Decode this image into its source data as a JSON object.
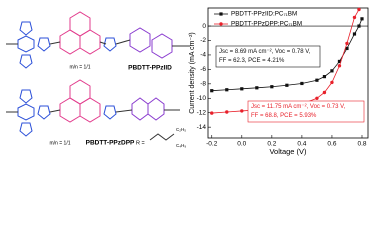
{
  "structures": {
    "polymer1": "PBDTT-PPzIID",
    "polymer2": "PBDTT-PPzDPP",
    "ratio1": "m/n = 1/1",
    "ratio2": "m/n = 1/1",
    "r_label": "R =",
    "substituent1": "C₂H₅",
    "substituent2": "C₄H₉"
  },
  "chart_data": {
    "type": "line",
    "xlabel": "Voltage (V)",
    "ylabel": "Current density (mA cm⁻²)",
    "x": [
      -0.2,
      -0.1,
      0,
      0.1,
      0.2,
      0.3,
      0.4,
      0.5,
      0.55,
      0.6,
      0.65,
      0.7,
      0.75,
      0.78,
      0.8
    ],
    "series": [
      {
        "name": "PBDTT-PPzIID:PC₇₁BM",
        "color": "#111111",
        "marker": "square",
        "values": [
          -8.95,
          -8.82,
          -8.69,
          -8.55,
          -8.4,
          -8.2,
          -7.95,
          -7.5,
          -7.0,
          -6.2,
          -4.9,
          -3.1,
          -1.1,
          0,
          1.0
        ]
      },
      {
        "name": "PBDTT-PPzDPP:PC₇₁BM",
        "color": "#e8202a",
        "marker": "circle",
        "values": [
          -12.05,
          -11.9,
          -11.75,
          -11.6,
          -11.4,
          -11.15,
          -10.8,
          -10.0,
          -9.2,
          -7.8,
          -5.5,
          -2.4,
          1.2,
          2.3,
          null
        ]
      }
    ],
    "annotations": [
      {
        "lines": [
          "Jsc = 8.69 mA cm⁻², Voc = 0.78 V,",
          "FF = 62.3, PCE = 4.21%"
        ],
        "color": "#111111"
      },
      {
        "lines": [
          "Jsc = 11.75 mA cm⁻², Voc = 0.73 V,",
          "FF = 68.8, PCE = 5.93%"
        ],
        "color": "#e8202a"
      }
    ],
    "xlim": [
      -0.225,
      0.84
    ],
    "ylim": [
      -15.5,
      2.5
    ],
    "xticks": [
      -0.2,
      {
        "value": 0,
        "label": "0.0"
      },
      0.2,
      0.4,
      0.6,
      0.8
    ],
    "yticks": [
      0,
      -2,
      -4,
      -6,
      -8,
      -10,
      -12,
      -14
    ],
    "legend": "upper left"
  }
}
